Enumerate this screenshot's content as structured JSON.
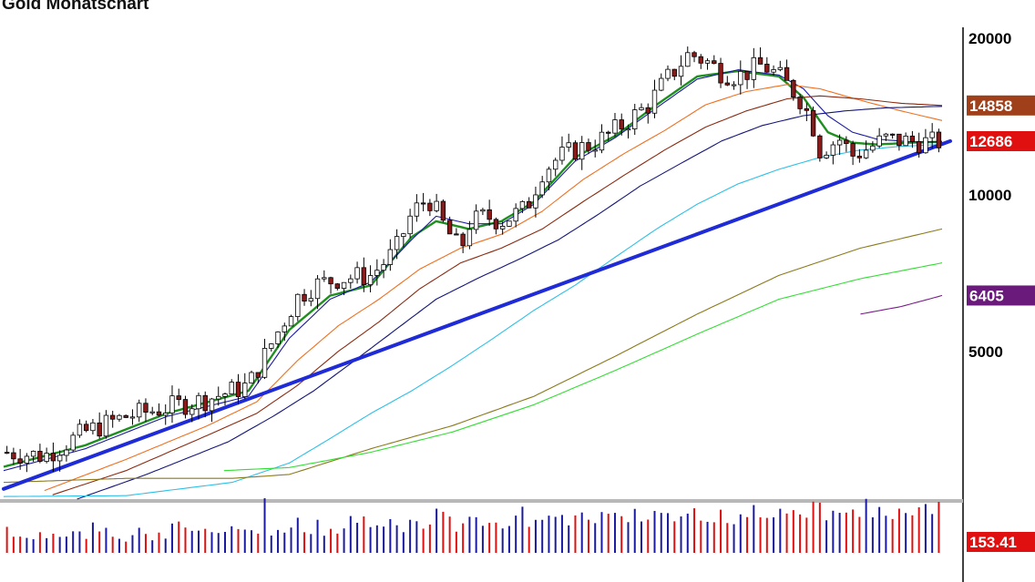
{
  "title": "Gold Monatschart",
  "colors": {
    "up_candle": "#ffffff",
    "down_candle": "#8b1a1a",
    "wick": "#000000",
    "trendline": "#1f2bd6",
    "ma_green": "#1f8f1f",
    "ma_blue_thin": "#1a1aa0",
    "ma_orange": "#f07020",
    "ma_brown": "#8b2a10",
    "ma_navy": "#14147a",
    "ma_cyan": "#2ec0e8",
    "ma_olive": "#8a7a1a",
    "ma_lime": "#33dd33",
    "ma_purple": "#7a1a8a",
    "vol_up": "#1a1aa0",
    "vol_down": "#dd1111"
  },
  "axis": {
    "price_ticks": [
      "20000",
      "10000",
      "5000"
    ],
    "price_tick_values": [
      20000,
      10000,
      5000
    ]
  },
  "badges": [
    {
      "label": "14858",
      "value": 14858,
      "color": "#a0401a"
    },
    {
      "label": "12686",
      "value": 12686,
      "color": "#e01010"
    },
    {
      "label": "6405",
      "value": 6405,
      "color": "#6a1a7a"
    }
  ],
  "volume_badge": {
    "label": "153.41",
    "color": "#e01010"
  },
  "chart_data": {
    "type": "line",
    "title": "Gold Monatschart",
    "y_scale": "log",
    "ylim": [
      2600,
      21000
    ],
    "candles_count": 142,
    "price_path": [
      [
        0,
        3200
      ],
      [
        10,
        3150
      ],
      [
        20,
        3500
      ],
      [
        30,
        3750
      ],
      [
        40,
        3900
      ],
      [
        50,
        4050
      ],
      [
        60,
        4300
      ],
      [
        68,
        5600
      ],
      [
        72,
        6350
      ],
      [
        76,
        6700
      ],
      [
        82,
        6900
      ],
      [
        90,
        7000
      ],
      [
        96,
        7800
      ],
      [
        100,
        9200
      ],
      [
        104,
        9900
      ],
      [
        108,
        8700
      ],
      [
        112,
        7800
      ],
      [
        114,
        8800
      ],
      [
        118,
        9100
      ],
      [
        122,
        8900
      ],
      [
        128,
        9400
      ],
      [
        132,
        11100
      ],
      [
        136,
        11800
      ],
      [
        140,
        12200
      ],
      [
        144,
        12500
      ],
      [
        148,
        13000
      ],
      [
        152,
        13700
      ],
      [
        158,
        14900
      ],
      [
        162,
        16500
      ],
      [
        168,
        18700
      ],
      [
        172,
        18100
      ],
      [
        176,
        17200
      ],
      [
        180,
        16900
      ],
      [
        186,
        17800
      ],
      [
        190,
        16900
      ],
      [
        195,
        15400
      ],
      [
        198,
        13900
      ],
      [
        200,
        12200
      ],
      [
        205,
        12800
      ],
      [
        208,
        11900
      ],
      [
        212,
        12300
      ],
      [
        216,
        12800
      ],
      [
        220,
        12700
      ],
      [
        224,
        12650
      ],
      [
        228,
        12600
      ],
      [
        230,
        12686
      ]
    ],
    "moving_averages": [
      {
        "color": "#1f8f1f",
        "width": 2.4,
        "points": [
          [
            0,
            3000
          ],
          [
            20,
            3300
          ],
          [
            40,
            3800
          ],
          [
            60,
            4200
          ],
          [
            70,
            5500
          ],
          [
            80,
            6400
          ],
          [
            90,
            6700
          ],
          [
            100,
            8300
          ],
          [
            106,
            8900
          ],
          [
            114,
            8600
          ],
          [
            122,
            8900
          ],
          [
            130,
            9700
          ],
          [
            140,
            11800
          ],
          [
            150,
            13000
          ],
          [
            160,
            14900
          ],
          [
            170,
            16900
          ],
          [
            180,
            17300
          ],
          [
            190,
            16900
          ],
          [
            196,
            15400
          ],
          [
            202,
            13200
          ],
          [
            208,
            12600
          ],
          [
            214,
            12500
          ],
          [
            222,
            12600
          ],
          [
            230,
            12650
          ]
        ]
      },
      {
        "color": "#1a1aa0",
        "width": 1.1,
        "points": [
          [
            0,
            2950
          ],
          [
            20,
            3250
          ],
          [
            40,
            3750
          ],
          [
            60,
            4100
          ],
          [
            70,
            5300
          ],
          [
            80,
            6300
          ],
          [
            90,
            6800
          ],
          [
            100,
            8200
          ],
          [
            106,
            9100
          ],
          [
            114,
            8800
          ],
          [
            122,
            8800
          ],
          [
            130,
            9600
          ],
          [
            140,
            11600
          ],
          [
            150,
            12900
          ],
          [
            160,
            14700
          ],
          [
            170,
            16700
          ],
          [
            180,
            17400
          ],
          [
            190,
            17000
          ],
          [
            196,
            16000
          ],
          [
            202,
            14200
          ],
          [
            208,
            13200
          ],
          [
            214,
            12800
          ],
          [
            222,
            12650
          ],
          [
            230,
            12650
          ]
        ]
      },
      {
        "color": "#f07020",
        "width": 1.1,
        "points": [
          [
            10,
            2700
          ],
          [
            30,
            3100
          ],
          [
            50,
            3600
          ],
          [
            62,
            4000
          ],
          [
            72,
            4800
          ],
          [
            82,
            5600
          ],
          [
            92,
            6300
          ],
          [
            102,
            7200
          ],
          [
            112,
            7900
          ],
          [
            122,
            8400
          ],
          [
            132,
            9300
          ],
          [
            142,
            10700
          ],
          [
            152,
            12000
          ],
          [
            162,
            13300
          ],
          [
            172,
            14900
          ],
          [
            182,
            15800
          ],
          [
            192,
            16300
          ],
          [
            200,
            16000
          ],
          [
            210,
            15200
          ],
          [
            220,
            14500
          ],
          [
            230,
            13900
          ]
        ]
      },
      {
        "color": "#8b2a10",
        "width": 1.1,
        "points": [
          [
            12,
            2650
          ],
          [
            30,
            2950
          ],
          [
            50,
            3450
          ],
          [
            62,
            3800
          ],
          [
            72,
            4300
          ],
          [
            82,
            5000
          ],
          [
            92,
            5700
          ],
          [
            102,
            6600
          ],
          [
            112,
            7400
          ],
          [
            122,
            7900
          ],
          [
            132,
            8600
          ],
          [
            142,
            9700
          ],
          [
            152,
            10900
          ],
          [
            162,
            12200
          ],
          [
            172,
            13500
          ],
          [
            182,
            14500
          ],
          [
            192,
            15300
          ],
          [
            200,
            15500
          ],
          [
            210,
            15300
          ],
          [
            220,
            15000
          ],
          [
            230,
            14858
          ]
        ]
      },
      {
        "color": "#14147a",
        "width": 1.1,
        "points": [
          [
            18,
            2600
          ],
          [
            35,
            2900
          ],
          [
            55,
            3350
          ],
          [
            66,
            3750
          ],
          [
            76,
            4200
          ],
          [
            86,
            4800
          ],
          [
            96,
            5500
          ],
          [
            106,
            6300
          ],
          [
            116,
            6900
          ],
          [
            126,
            7500
          ],
          [
            136,
            8200
          ],
          [
            146,
            9200
          ],
          [
            156,
            10400
          ],
          [
            166,
            11500
          ],
          [
            176,
            12700
          ],
          [
            186,
            13600
          ],
          [
            196,
            14200
          ],
          [
            206,
            14500
          ],
          [
            216,
            14700
          ],
          [
            230,
            14800
          ]
        ]
      },
      {
        "color": "#2ec0e8",
        "width": 1.1,
        "points": [
          [
            0,
            2630
          ],
          [
            30,
            2640
          ],
          [
            56,
            2800
          ],
          [
            70,
            3050
          ],
          [
            80,
            3400
          ],
          [
            90,
            3800
          ],
          [
            100,
            4200
          ],
          [
            110,
            4700
          ],
          [
            120,
            5300
          ],
          [
            130,
            6000
          ],
          [
            140,
            6700
          ],
          [
            150,
            7600
          ],
          [
            160,
            8600
          ],
          [
            170,
            9600
          ],
          [
            180,
            10500
          ],
          [
            190,
            11200
          ],
          [
            200,
            11800
          ],
          [
            210,
            12200
          ],
          [
            220,
            12400
          ],
          [
            230,
            12500
          ]
        ]
      },
      {
        "color": "#8a7a1a",
        "width": 1.1,
        "points": [
          [
            0,
            2800
          ],
          [
            30,
            2850
          ],
          [
            56,
            2850
          ],
          [
            70,
            2900
          ],
          [
            90,
            3250
          ],
          [
            110,
            3600
          ],
          [
            130,
            4100
          ],
          [
            150,
            4900
          ],
          [
            170,
            5900
          ],
          [
            190,
            7000
          ],
          [
            210,
            7900
          ],
          [
            230,
            8600
          ]
        ]
      },
      {
        "color": "#33dd33",
        "width": 1.1,
        "points": [
          [
            54,
            2950
          ],
          [
            70,
            2990
          ],
          [
            90,
            3200
          ],
          [
            110,
            3500
          ],
          [
            130,
            3950
          ],
          [
            150,
            4600
          ],
          [
            170,
            5400
          ],
          [
            190,
            6300
          ],
          [
            210,
            6900
          ],
          [
            230,
            7400
          ]
        ]
      },
      {
        "color": "#7a1a8a",
        "width": 1.1,
        "points": [
          [
            210,
            5900
          ],
          [
            220,
            6100
          ],
          [
            230,
            6405
          ]
        ]
      }
    ],
    "trendline": {
      "start": [
        0,
        2720
      ],
      "end": [
        232,
        12690
      ]
    },
    "badge_values": [
      14858,
      12686,
      6405
    ]
  }
}
